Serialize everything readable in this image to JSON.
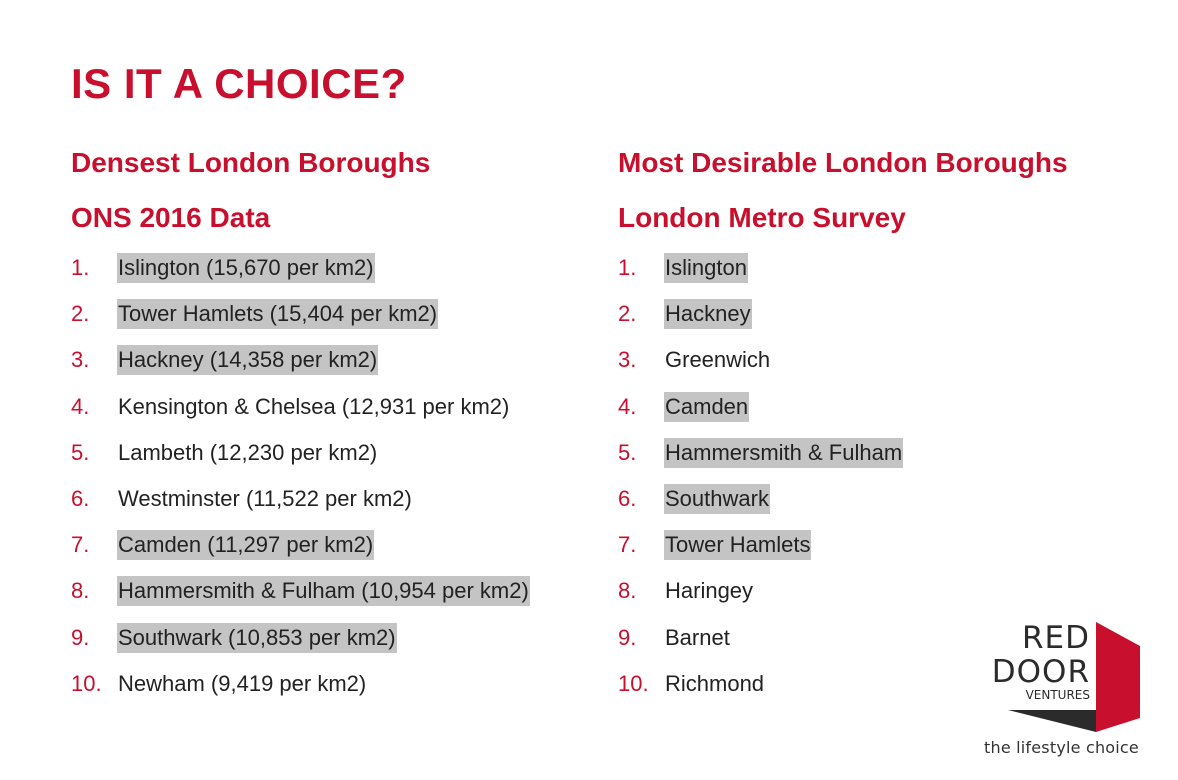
{
  "title": "IS IT A CHOICE?",
  "left": {
    "heading": "Densest London Boroughs",
    "subheading": "ONS 2016 Data",
    "items": [
      {
        "num": "1.",
        "text": "Islington (15,670 per km2)",
        "highlight": true
      },
      {
        "num": "2.",
        "text": "Tower Hamlets (15,404 per km2)",
        "highlight": true
      },
      {
        "num": "3.",
        "text": "Hackney (14,358 per km2)",
        "highlight": true
      },
      {
        "num": "4.",
        "text": "Kensington & Chelsea (12,931 per km2)",
        "highlight": false
      },
      {
        "num": "5.",
        "text": "Lambeth (12,230 per km2)",
        "highlight": false
      },
      {
        "num": "6.",
        "text": "Westminster (11,522 per km2)",
        "highlight": false
      },
      {
        "num": "7.",
        "text": "Camden (11,297 per km2)",
        "highlight": true
      },
      {
        "num": "8.",
        "text": "Hammersmith & Fulham (10,954 per km2)",
        "highlight": true
      },
      {
        "num": "9.",
        "text": "Southwark (10,853 per km2)",
        "highlight": true
      },
      {
        "num": "10.",
        "text": "Newham (9,419 per km2)",
        "highlight": false
      }
    ]
  },
  "right": {
    "heading": "Most Desirable London Boroughs",
    "subheading": "London Metro Survey",
    "items": [
      {
        "num": "1.",
        "text": "Islington",
        "highlight": true
      },
      {
        "num": "2.",
        "text": "Hackney",
        "highlight": true
      },
      {
        "num": "3.",
        "text": "Greenwich",
        "highlight": false
      },
      {
        "num": "4.",
        "text": "Camden",
        "highlight": true
      },
      {
        "num": "5.",
        "text": "Hammersmith & Fulham",
        "highlight": true
      },
      {
        "num": "6.",
        "text": "Southwark",
        "highlight": true
      },
      {
        "num": "7.",
        "text": "Tower Hamlets",
        "highlight": true
      },
      {
        "num": "8.",
        "text": "Haringey",
        "highlight": false
      },
      {
        "num": "9.",
        "text": "Barnet",
        "highlight": false
      },
      {
        "num": "10.",
        "text": "Richmond",
        "highlight": false
      }
    ]
  },
  "logo": {
    "line1": "RED",
    "line2": "DOOR",
    "line3": "VENTURES",
    "tagline": "the lifestyle choice"
  },
  "colors": {
    "accent": "#c8102e",
    "highlight": "#c4c4c4",
    "text": "#222222"
  }
}
